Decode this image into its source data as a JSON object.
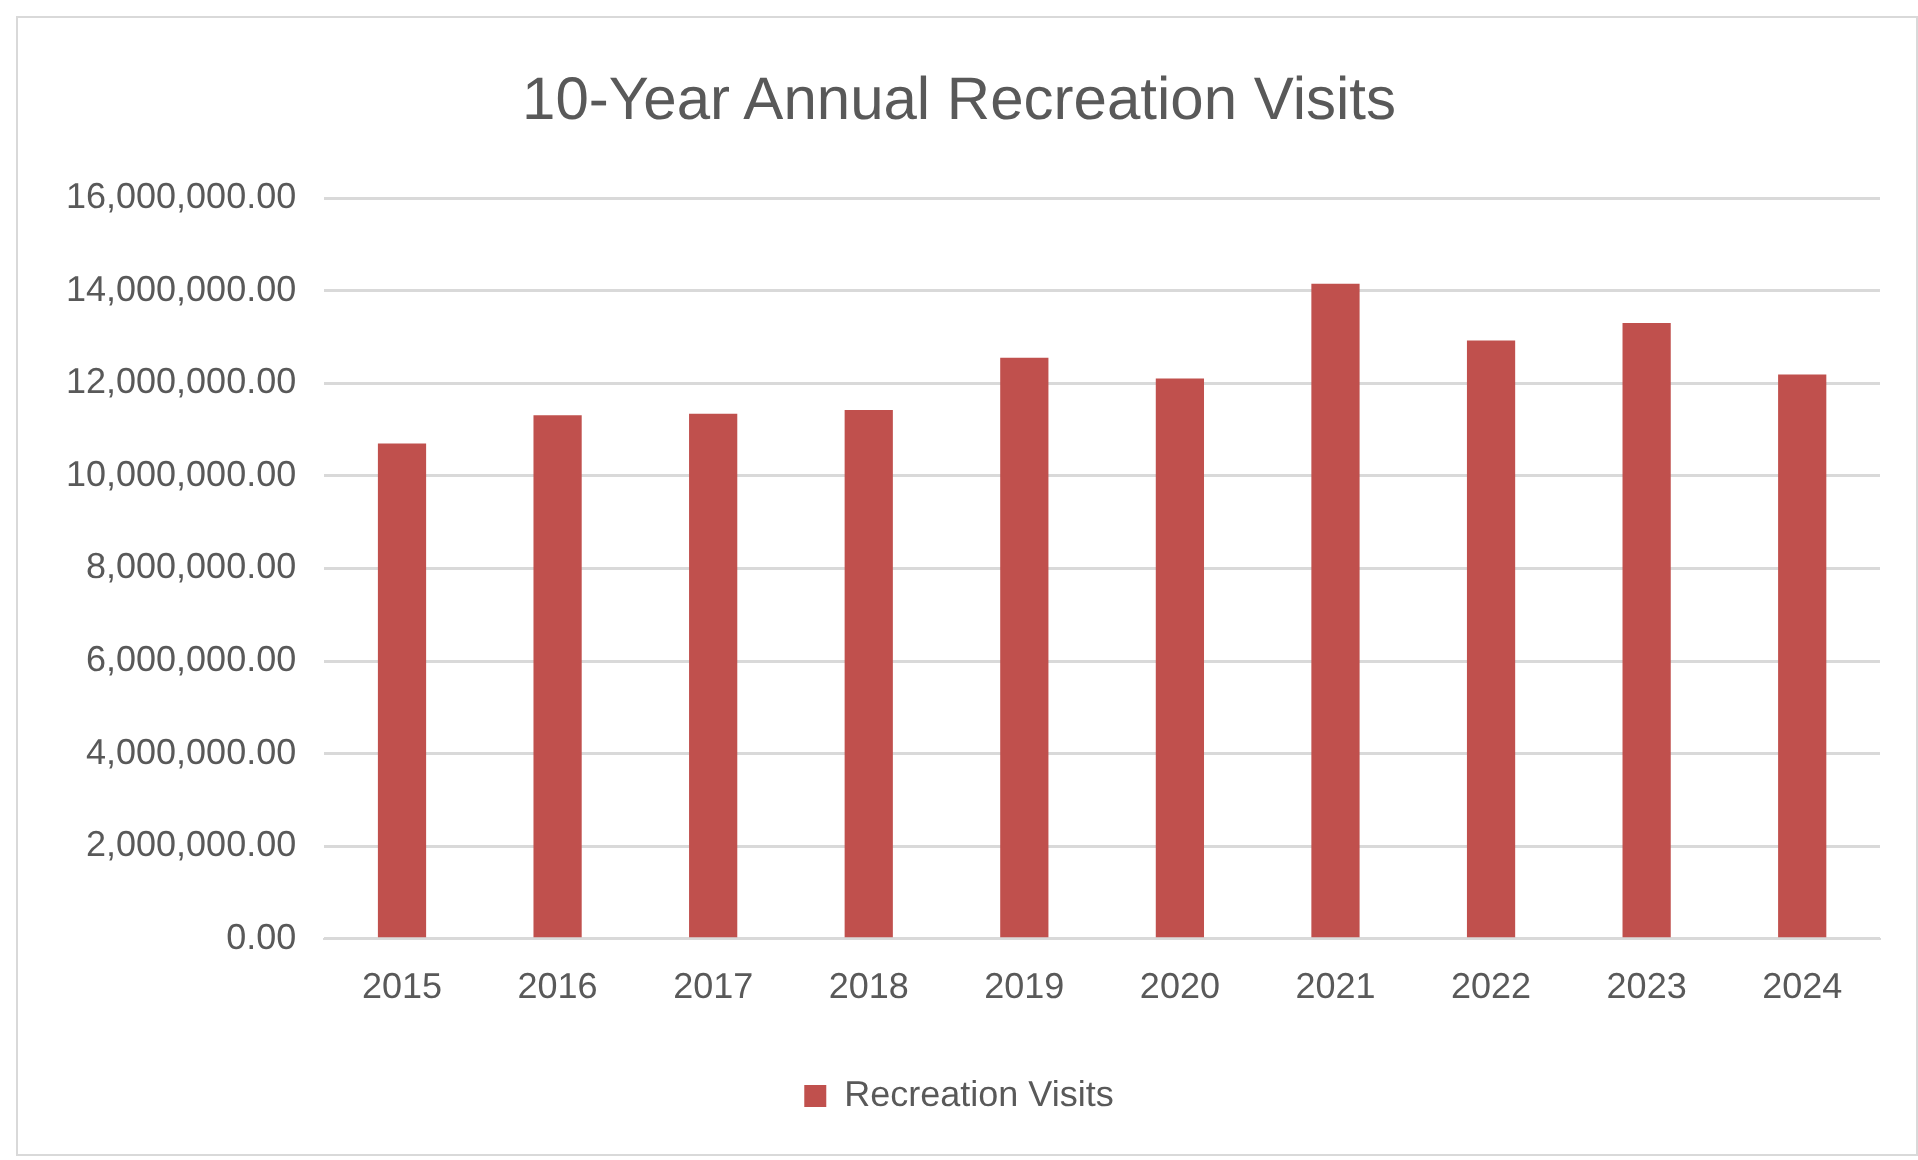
{
  "chart_data": {
    "type": "bar",
    "title": "10-Year Annual Recreation Visits",
    "categories": [
      "2015",
      "2016",
      "2017",
      "2018",
      "2019",
      "2020",
      "2021",
      "2022",
      "2023",
      "2024"
    ],
    "series": [
      {
        "name": "Recreation Visits",
        "color": "#c0504d",
        "values": [
          10700000,
          11310000,
          11340000,
          11420000,
          12550000,
          12100000,
          14150000,
          12920000,
          13300000,
          12190000
        ]
      }
    ],
    "ylim": [
      0,
      16000000
    ],
    "yticks": [
      {
        "value": 0,
        "label": "0.00"
      },
      {
        "value": 2000000,
        "label": "2,000,000.00"
      },
      {
        "value": 4000000,
        "label": "4,000,000.00"
      },
      {
        "value": 6000000,
        "label": "6,000,000.00"
      },
      {
        "value": 8000000,
        "label": "8,000,000.00"
      },
      {
        "value": 10000000,
        "label": "10,000,000.00"
      },
      {
        "value": 12000000,
        "label": "12,000,000.00"
      },
      {
        "value": 14000000,
        "label": "14,000,000.00"
      },
      {
        "value": 16000000,
        "label": "16,000,000.00"
      }
    ],
    "grid": "y",
    "legend": "bottom"
  }
}
